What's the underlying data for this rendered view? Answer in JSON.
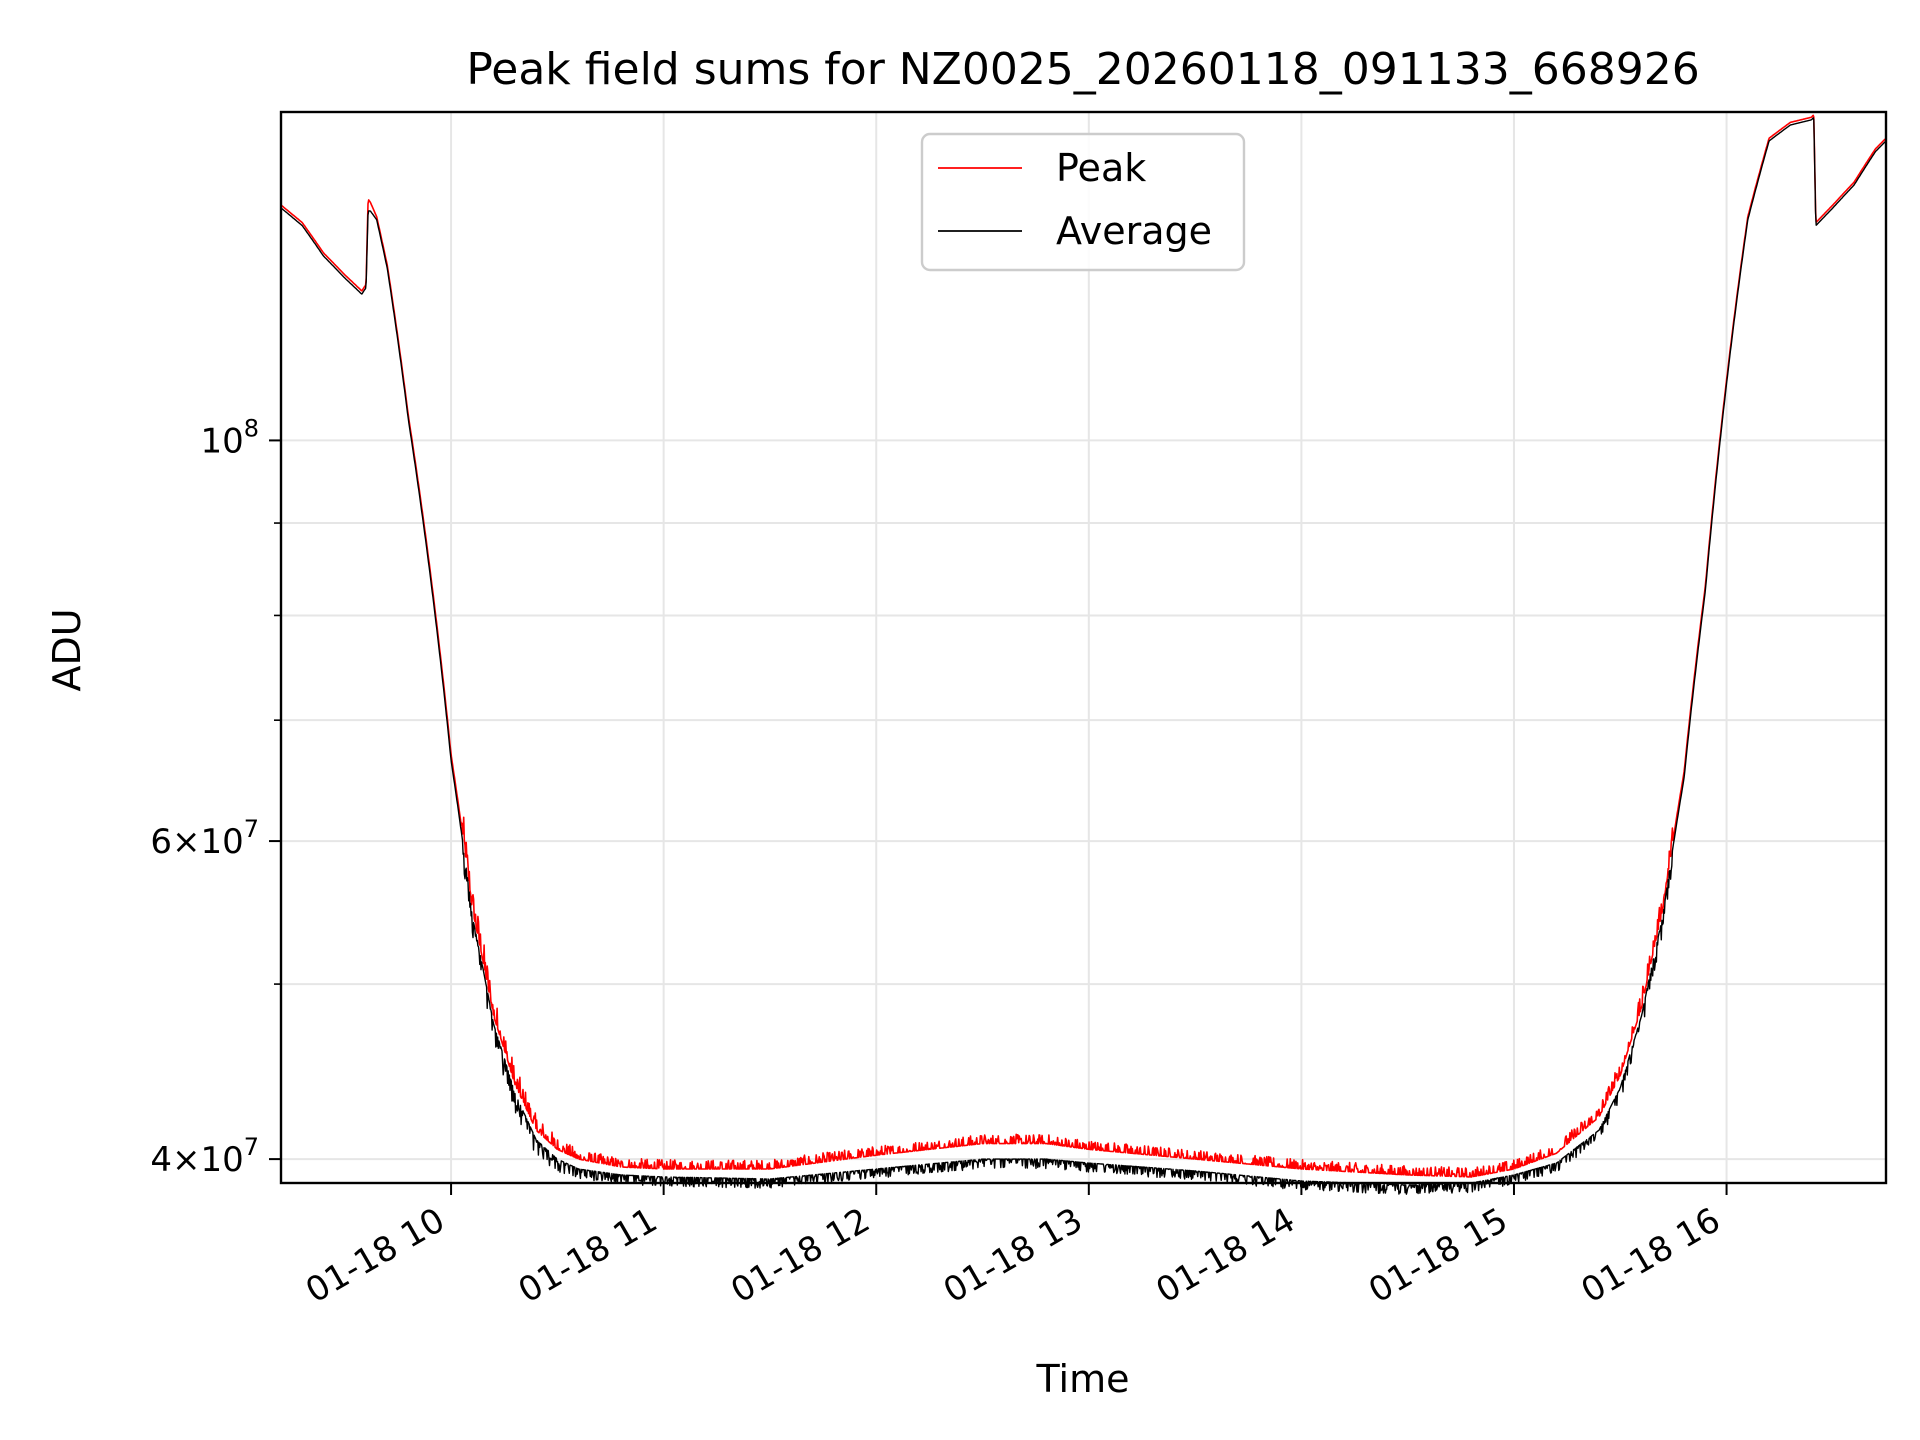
{
  "chart_data": {
    "type": "line",
    "title": "Peak field sums for NZ0025_20260118_091133_668926",
    "xlabel": "Time",
    "ylabel": "ADU",
    "yscale": "log",
    "grid": true,
    "legend_position": "top-center",
    "xlim": [
      9.2,
      16.75
    ],
    "ylim": [
      38800000,
      152000000
    ],
    "x_ticks": [
      {
        "value": 10,
        "label": "01-18 10"
      },
      {
        "value": 11,
        "label": "01-18 11"
      },
      {
        "value": 12,
        "label": "01-18 12"
      },
      {
        "value": 13,
        "label": "01-18 13"
      },
      {
        "value": 14,
        "label": "01-18 14"
      },
      {
        "value": 15,
        "label": "01-18 15"
      },
      {
        "value": 16,
        "label": "01-18 16"
      }
    ],
    "y_major_ticks": [
      {
        "value": 40000000,
        "base": "4",
        "exp": "7",
        "kind": "mult"
      },
      {
        "value": 60000000,
        "base": "6",
        "exp": "7",
        "kind": "mult"
      },
      {
        "value": 100000000,
        "base": "10",
        "exp": "8",
        "kind": "pow"
      }
    ],
    "y_minor_ticks": [
      50000000,
      70000000,
      80000000,
      90000000
    ],
    "series": [
      {
        "name": "Peak",
        "color": "#ff0000",
        "noise": "positive",
        "x": [
          9.2,
          9.3,
          9.4,
          9.5,
          9.58,
          9.6,
          9.61,
          9.62,
          9.65,
          9.7,
          9.8,
          9.9,
          10.0,
          10.1,
          10.2,
          10.3,
          10.4,
          10.5,
          10.6,
          10.8,
          11.0,
          11.5,
          12.0,
          12.5,
          12.8,
          13.0,
          13.5,
          14.0,
          14.5,
          14.8,
          15.0,
          15.2,
          15.4,
          15.5,
          15.6,
          15.7,
          15.8,
          15.9,
          16.0,
          16.1,
          16.2,
          16.3,
          16.4,
          16.41,
          16.42,
          16.5,
          16.6,
          16.7,
          16.75
        ],
        "y": [
          135000000,
          132000000,
          127000000,
          123500000,
          121000000,
          122000000,
          136000000,
          135500000,
          133000000,
          125000000,
          103000000,
          85000000,
          67000000,
          55000000,
          48000000,
          44000000,
          41500000,
          40500000,
          40000000,
          39600000,
          39500000,
          39500000,
          40200000,
          40800000,
          40800000,
          40500000,
          40000000,
          39500000,
          39200000,
          39100000,
          39500000,
          40300000,
          42200000,
          44500000,
          48500000,
          55000000,
          65500000,
          83000000,
          108000000,
          133000000,
          147000000,
          150000000,
          151000000,
          151500000,
          132000000,
          135000000,
          139000000,
          145000000,
          147000000
        ]
      },
      {
        "name": "Average",
        "color": "#000000",
        "noise": "negative",
        "x": [
          9.2,
          9.3,
          9.4,
          9.5,
          9.58,
          9.6,
          9.61,
          9.62,
          9.65,
          9.7,
          9.8,
          9.9,
          10.0,
          10.1,
          10.2,
          10.3,
          10.4,
          10.5,
          10.6,
          10.8,
          11.0,
          11.5,
          12.0,
          12.5,
          12.8,
          13.0,
          13.5,
          14.0,
          14.5,
          14.8,
          15.0,
          15.2,
          15.4,
          15.5,
          15.6,
          15.7,
          15.8,
          15.9,
          16.0,
          16.1,
          16.2,
          16.3,
          16.4,
          16.41,
          16.42,
          16.5,
          16.6,
          16.7,
          16.75
        ],
        "y": [
          134500000,
          131500000,
          126500000,
          123000000,
          120500000,
          121500000,
          134000000,
          134000000,
          132500000,
          124500000,
          102500000,
          84500000,
          66500000,
          54500000,
          47500000,
          43500000,
          41000000,
          40000000,
          39500000,
          39200000,
          39100000,
          39000000,
          39500000,
          40000000,
          40000000,
          39800000,
          39400000,
          38900000,
          38700000,
          38800000,
          39200000,
          39800000,
          41500000,
          43800000,
          48000000,
          54500000,
          65000000,
          82500000,
          107500000,
          132500000,
          146500000,
          149500000,
          150500000,
          151000000,
          131500000,
          134500000,
          138500000,
          144500000,
          146500000
        ]
      }
    ]
  }
}
